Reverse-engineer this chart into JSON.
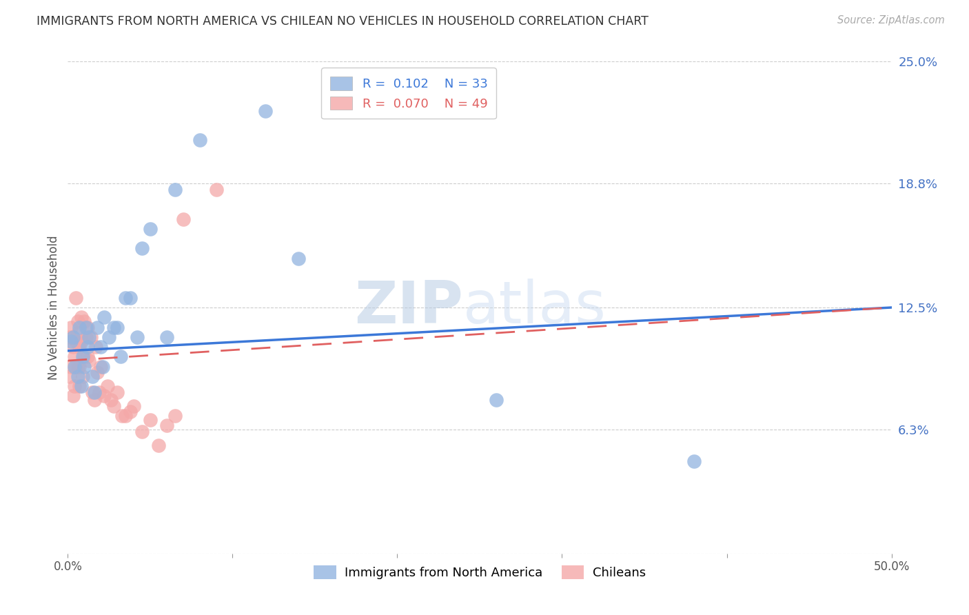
{
  "title": "IMMIGRANTS FROM NORTH AMERICA VS CHILEAN NO VEHICLES IN HOUSEHOLD CORRELATION CHART",
  "source": "Source: ZipAtlas.com",
  "ylabel": "No Vehicles in Household",
  "legend_label_blue": "Immigrants from North America",
  "legend_label_pink": "Chileans",
  "R_blue": 0.102,
  "N_blue": 33,
  "R_pink": 0.07,
  "N_pink": 49,
  "color_blue": "#92b4e0",
  "color_pink": "#f4a8a8",
  "color_blue_line": "#3c78d8",
  "color_pink_line": "#e06060",
  "right_tick_color": "#4472c4",
  "watermark_text": "ZIPatlas",
  "watermark_color": "#d6e4f7",
  "y_tick_values": [
    0.0,
    0.063,
    0.125,
    0.188,
    0.25
  ],
  "y_tick_labels_right": [
    "",
    "6.3%",
    "12.5%",
    "18.8%",
    "25.0%"
  ],
  "xlim": [
    0.0,
    0.5
  ],
  "ylim": [
    0.0,
    0.25
  ],
  "blue_x": [
    0.002,
    0.003,
    0.004,
    0.006,
    0.007,
    0.008,
    0.009,
    0.01,
    0.011,
    0.012,
    0.013,
    0.015,
    0.016,
    0.018,
    0.02,
    0.021,
    0.022,
    0.025,
    0.028,
    0.03,
    0.032,
    0.035,
    0.038,
    0.042,
    0.045,
    0.05,
    0.06,
    0.065,
    0.08,
    0.12,
    0.14,
    0.26,
    0.38
  ],
  "blue_y": [
    0.108,
    0.11,
    0.095,
    0.09,
    0.115,
    0.085,
    0.1,
    0.095,
    0.115,
    0.105,
    0.11,
    0.09,
    0.082,
    0.115,
    0.105,
    0.095,
    0.12,
    0.11,
    0.115,
    0.115,
    0.1,
    0.13,
    0.13,
    0.11,
    0.155,
    0.165,
    0.11,
    0.185,
    0.21,
    0.225,
    0.15,
    0.078,
    0.047
  ],
  "pink_x": [
    0.001,
    0.001,
    0.002,
    0.002,
    0.003,
    0.003,
    0.004,
    0.004,
    0.005,
    0.005,
    0.005,
    0.006,
    0.006,
    0.006,
    0.007,
    0.007,
    0.007,
    0.008,
    0.008,
    0.009,
    0.01,
    0.01,
    0.011,
    0.012,
    0.012,
    0.013,
    0.014,
    0.015,
    0.016,
    0.017,
    0.018,
    0.019,
    0.02,
    0.022,
    0.024,
    0.026,
    0.028,
    0.03,
    0.033,
    0.035,
    0.038,
    0.04,
    0.045,
    0.05,
    0.055,
    0.06,
    0.065,
    0.07,
    0.09
  ],
  "pink_y": [
    0.11,
    0.09,
    0.115,
    0.095,
    0.08,
    0.105,
    0.1,
    0.085,
    0.13,
    0.095,
    0.108,
    0.112,
    0.095,
    0.118,
    0.105,
    0.095,
    0.085,
    0.108,
    0.12,
    0.09,
    0.1,
    0.118,
    0.11,
    0.115,
    0.1,
    0.098,
    0.11,
    0.082,
    0.078,
    0.105,
    0.092,
    0.082,
    0.095,
    0.08,
    0.085,
    0.078,
    0.075,
    0.082,
    0.07,
    0.07,
    0.072,
    0.075,
    0.062,
    0.068,
    0.055,
    0.065,
    0.07,
    0.17,
    0.185
  ]
}
